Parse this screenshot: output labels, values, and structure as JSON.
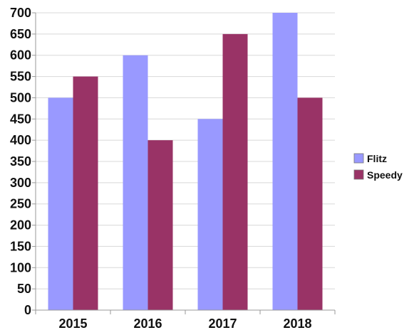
{
  "chart_data": {
    "type": "bar",
    "categories": [
      "2015",
      "2016",
      "2017",
      "2018"
    ],
    "series": [
      {
        "name": "Flitz",
        "values": [
          500,
          600,
          450,
          700
        ],
        "color": "#9999ff"
      },
      {
        "name": "Speedy",
        "values": [
          550,
          400,
          650,
          500
        ],
        "color": "#993366"
      }
    ],
    "ylim": [
      0,
      700
    ],
    "yticks": [
      "0",
      "50",
      "100",
      "150",
      "200",
      "250",
      "300",
      "350",
      "400",
      "450",
      "500",
      "550",
      "600",
      "650",
      "700"
    ],
    "grid": true,
    "legend_position": "right",
    "title": "",
    "xlabel": "",
    "ylabel": ""
  }
}
